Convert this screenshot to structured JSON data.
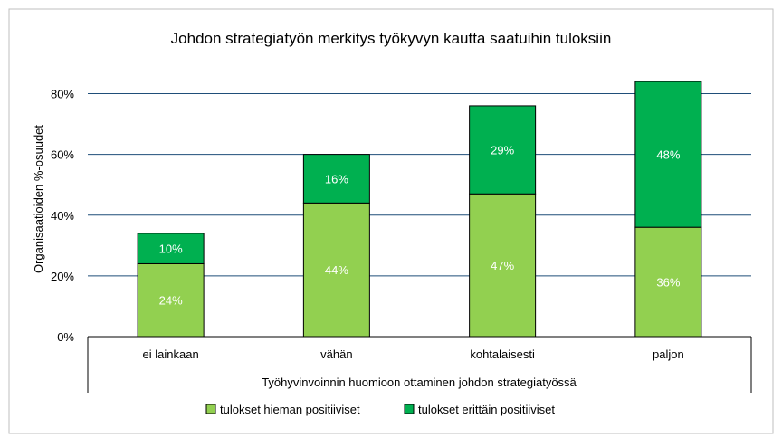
{
  "chart_data": {
    "type": "bar",
    "stacked": true,
    "title": "Johdon strategiatyön merkitys työkyvyn kautta saatuihin tuloksiin",
    "xlabel": "Työhyvinvoinnin huomioon ottaminen johdon strategiatyössä",
    "ylabel": "Organisaatioiden %-osuudet",
    "categories": [
      "ei lainkaan",
      "vähän",
      "kohtalaisesti",
      "paljon"
    ],
    "series": [
      {
        "name": "tulokset hieman positiiviset",
        "values": [
          24,
          44,
          47,
          36
        ],
        "labels": [
          "24%",
          "44%",
          "47%",
          "36%"
        ],
        "color": "#92d050"
      },
      {
        "name": "tulokset erittäin positiiviset",
        "values": [
          10,
          16,
          29,
          48
        ],
        "labels": [
          "10%",
          "16%",
          "29%",
          "48%"
        ],
        "color": "#00b050"
      }
    ],
    "ylim": [
      0,
      80
    ],
    "yticks": [
      0,
      20,
      40,
      60,
      80
    ],
    "ytick_labels": [
      "0%",
      "20%",
      "40%",
      "60%",
      "80%"
    ],
    "grid": true,
    "gridline_color": "#1f4e79",
    "legend_position": "bottom"
  }
}
